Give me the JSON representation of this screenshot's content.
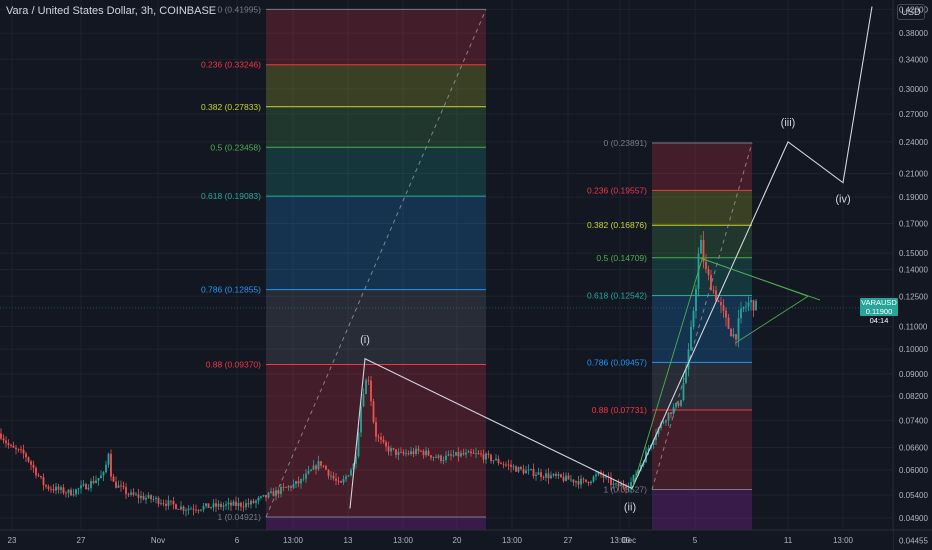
{
  "header": {
    "title": "Vara / United States Dollar, 3h, COINBASE",
    "currency": "USD"
  },
  "price_tag": {
    "symbol": "VARAUSD",
    "price": "0.11900",
    "countdown": "04:14"
  },
  "chart_data": {
    "type": "candlestick",
    "symbol": "VARAUSD",
    "exchange": "COINBASE",
    "interval": "3h",
    "y_scale": "log",
    "ylim": [
      0.0428,
      0.437
    ],
    "y_ticks": [
      "0.42000",
      "0.38000",
      "0.34000",
      "0.30000",
      "0.27000",
      "0.24000",
      "0.21000",
      "0.19000",
      "0.17000",
      "0.15000",
      "0.14000",
      "0.12500",
      "0.11000",
      "0.10000",
      "0.09000",
      "0.08200",
      "0.07400",
      "0.06600",
      "0.06000",
      "0.05400",
      "0.04900",
      "0.04455"
    ],
    "x_ticks": [
      "23",
      "27",
      "Nov",
      "6",
      "13:00",
      "13",
      "13:00",
      "20",
      "13:00",
      "27",
      "13:00",
      "Dec",
      "5",
      "11",
      "13:00"
    ],
    "fib_retracements": [
      {
        "levels": [
          {
            "ratio": "0",
            "price": "0.41995",
            "color": "#787b86"
          },
          {
            "ratio": "0.236",
            "price": "0.33246",
            "color": "#f23645"
          },
          {
            "ratio": "0.382",
            "price": "0.27833",
            "color": "#c8d42e"
          },
          {
            "ratio": "0.5",
            "price": "0.23458",
            "color": "#4caf50"
          },
          {
            "ratio": "0.618",
            "price": "0.19083",
            "color": "#22ab94"
          },
          {
            "ratio": "0.786",
            "price": "0.12855",
            "color": "#2196f3"
          },
          {
            "ratio": "0.88",
            "price": "0.09370",
            "color": "#f23645"
          },
          {
            "ratio": "1",
            "price": "0.04921",
            "color": "#787b86"
          }
        ]
      },
      {
        "levels": [
          {
            "ratio": "0",
            "price": "0.23891",
            "color": "#787b86"
          },
          {
            "ratio": "0.236",
            "price": "0.19557",
            "color": "#f23645"
          },
          {
            "ratio": "0.382",
            "price": "0.16876",
            "color": "#c8d42e"
          },
          {
            "ratio": "0.5",
            "price": "0.14709",
            "color": "#4caf50"
          },
          {
            "ratio": "0.618",
            "price": "0.12542",
            "color": "#22ab94"
          },
          {
            "ratio": "0.786",
            "price": "0.09457",
            "color": "#2196f3"
          },
          {
            "ratio": "0.88",
            "price": "0.07731",
            "color": "#f23645"
          },
          {
            "ratio": "1",
            "price": "0.05527",
            "color": "#787b86"
          }
        ]
      }
    ],
    "wave_labels": [
      "(i)",
      "(ii)",
      "(iii)",
      "(iv)",
      "(v)"
    ],
    "wave_path": [
      {
        "label": "(i)",
        "price": 0.096
      },
      {
        "label": "(ii)",
        "price": 0.0555
      },
      {
        "label": "(iii)",
        "price": 0.24
      },
      {
        "label": "(iv)",
        "price": 0.202
      },
      {
        "label": "(v)",
        "price": 0.425
      }
    ],
    "current_price": 0.119,
    "colors": {
      "up": "#26a69a",
      "down": "#ef5350",
      "wave": "#d1d4dc",
      "triangle": "#4caf50"
    }
  }
}
